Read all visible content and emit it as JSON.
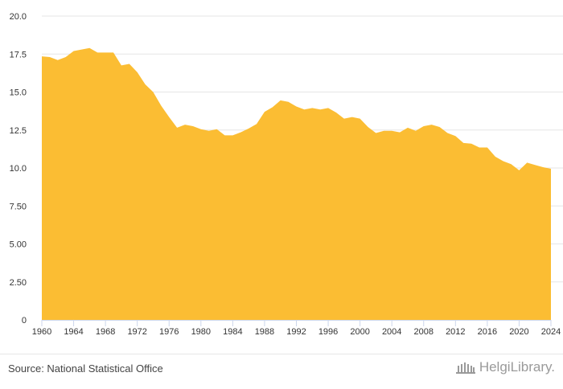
{
  "chart_data": {
    "type": "area",
    "title": "",
    "xlabel": "",
    "ylabel": "",
    "x": [
      1960,
      1961,
      1962,
      1963,
      1964,
      1965,
      1966,
      1967,
      1968,
      1969,
      1970,
      1971,
      1972,
      1973,
      1974,
      1975,
      1976,
      1977,
      1978,
      1979,
      1980,
      1981,
      1982,
      1983,
      1984,
      1985,
      1986,
      1987,
      1988,
      1989,
      1990,
      1991,
      1992,
      1993,
      1994,
      1995,
      1996,
      1997,
      1998,
      1999,
      2000,
      2001,
      2002,
      2003,
      2004,
      2005,
      2006,
      2007,
      2008,
      2009,
      2010,
      2011,
      2012,
      2013,
      2014,
      2015,
      2016,
      2017,
      2018,
      2019,
      2020,
      2021,
      2022,
      2023,
      2024
    ],
    "values": [
      17.35,
      17.3,
      17.1,
      17.3,
      17.7,
      17.8,
      17.9,
      17.6,
      17.6,
      17.6,
      16.75,
      16.85,
      16.3,
      15.5,
      15.0,
      14.1,
      13.35,
      12.65,
      12.85,
      12.75,
      12.55,
      12.45,
      12.55,
      12.15,
      12.15,
      12.35,
      12.6,
      12.9,
      13.7,
      14.0,
      14.45,
      14.35,
      14.05,
      13.85,
      13.95,
      13.85,
      13.95,
      13.65,
      13.25,
      13.35,
      13.25,
      12.7,
      12.3,
      12.45,
      12.45,
      12.35,
      12.65,
      12.45,
      12.75,
      12.85,
      12.7,
      12.3,
      12.1,
      11.65,
      11.6,
      11.35,
      11.35,
      10.75,
      10.45,
      10.25,
      9.85,
      10.35,
      10.2,
      10.05,
      9.95
    ],
    "xticks": [
      "1960",
      "1964",
      "1968",
      "1972",
      "1976",
      "1980",
      "1984",
      "1988",
      "1992",
      "1996",
      "2000",
      "2004",
      "2008",
      "2012",
      "2016",
      "2020",
      "2024"
    ],
    "yticks": [
      "0",
      "2.50",
      "5.00",
      "7.50",
      "10.0",
      "12.5",
      "15.0",
      "17.5",
      "20.0"
    ],
    "ylim": [
      0,
      20
    ],
    "xlim": [
      1960,
      2024
    ],
    "grid": true,
    "legend": "none",
    "colors": {
      "fill": "#FBBD33",
      "grid": "#e6e6e6",
      "axis": "#ccd6eb"
    }
  },
  "footer": {
    "source": "Source: National Statistical Office",
    "logo": "HelgiLibrary."
  }
}
